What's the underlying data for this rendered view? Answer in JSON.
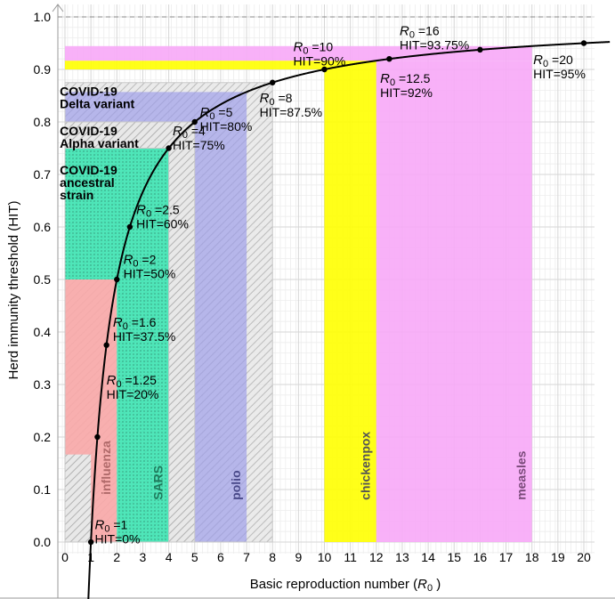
{
  "chart_data": {
    "type": "line",
    "xlabel_prefix": "Basic reproduction number (",
    "xlabel_symbol": "R",
    "xlabel_sub": "0",
    "xlabel_suffix": " )",
    "ylabel": "Herd immunity threshold (HIT)",
    "xlim": [
      0,
      21
    ],
    "ylim": [
      -0.105,
      1.03
    ],
    "x_ticks": [
      0,
      1,
      2,
      3,
      4,
      5,
      6,
      7,
      8,
      9,
      10,
      11,
      12,
      13,
      14,
      15,
      16,
      17,
      18,
      19,
      20
    ],
    "y_ticks": [
      0.0,
      0.1,
      0.2,
      0.3,
      0.4,
      0.5,
      0.6,
      0.7,
      0.8,
      0.9,
      1.0
    ],
    "y_tick_labels": [
      "0.0",
      "0.1",
      "0.2",
      "0.3",
      "0.4",
      "0.5",
      "0.6",
      "0.7",
      "0.8",
      "0.9",
      "1.0"
    ],
    "grid": true,
    "curve": "HIT = 1 - 1/R0",
    "points": [
      {
        "r0": "1",
        "x": 1,
        "y": 0.0,
        "hit": "HIT=0%"
      },
      {
        "r0": "1.25",
        "x": 1.25,
        "y": 0.2,
        "hit": "HIT=20%"
      },
      {
        "r0": "1.6",
        "x": 1.6,
        "y": 0.375,
        "hit": "HIT=37.5%"
      },
      {
        "r0": "2",
        "x": 2,
        "y": 0.5,
        "hit": "HIT=50%"
      },
      {
        "r0": "2.5",
        "x": 2.5,
        "y": 0.6,
        "hit": "HIT=60%"
      },
      {
        "r0": "4",
        "x": 4,
        "y": 0.75,
        "hit": "HIT=75%"
      },
      {
        "r0": "5",
        "x": 5,
        "y": 0.8,
        "hit": "HIT=80%"
      },
      {
        "r0": "8",
        "x": 8,
        "y": 0.875,
        "hit": "HIT=87.5%"
      },
      {
        "r0": "10",
        "x": 10,
        "y": 0.9,
        "hit": "HIT=90%"
      },
      {
        "r0": "12.5",
        "x": 12.5,
        "y": 0.92,
        "hit": "HIT=92%"
      },
      {
        "r0": "16",
        "x": 16,
        "y": 0.9375,
        "hit": "HIT=93.75%"
      },
      {
        "r0": "20",
        "x": 20,
        "y": 0.95,
        "hit": "HIT=95%"
      }
    ],
    "r0_prefix": "R",
    "r0_sub": "0",
    "r0_eq": " =",
    "diseases": [
      {
        "name": "influenza",
        "x0": 1.0,
        "x1": 2.0,
        "y0": 0.1667,
        "y1": 0.5,
        "fill": "#f9a8a8",
        "text_color": "#b06a6a",
        "pattern": "none"
      },
      {
        "name": "SARS",
        "x0": 2.0,
        "x1": 4.0,
        "y0": 0.5,
        "y1": 0.75,
        "fill": "#3ee6b4",
        "text_color": "#1f7a5c",
        "pattern": "dots"
      },
      {
        "name": "polio",
        "x0": 5.0,
        "x1": 7.0,
        "y0": 0.8,
        "y1": 0.857,
        "fill": "#9a9aea",
        "text_color": "#4a4a8a",
        "pattern": "none"
      },
      {
        "name": "chickenpox",
        "x0": 10.0,
        "x1": 12.0,
        "y0": 0.9,
        "y1": 0.9167,
        "fill": "#ffff00",
        "text_color": "#555555",
        "pattern": "none"
      },
      {
        "name": "measles",
        "x0": 12.0,
        "x1": 18.0,
        "y0": 0.9167,
        "y1": 0.9444,
        "fill": "#f7a8f7",
        "text_color": "#7a4a7a",
        "pattern": "none"
      }
    ],
    "covid": [
      {
        "line1": "COVID-19",
        "line2": "ancestral",
        "line3": "strain",
        "x0": 2.0,
        "x1": 4.0,
        "y0": 0.5,
        "y1": 0.75,
        "fill": "#3ee6b4"
      },
      {
        "line1": "COVID-19",
        "line2": "Alpha variant",
        "line3": "",
        "x0": 4.0,
        "x1": 5.0,
        "y0": 0.75,
        "y1": 0.8,
        "fill": "#dddddd"
      },
      {
        "line1": "COVID-19",
        "line2": "Delta variant",
        "line3": "",
        "x0": 5.0,
        "x1": 8.0,
        "y0": 0.8,
        "y1": 0.875,
        "fill": "#dddddd"
      }
    ]
  }
}
